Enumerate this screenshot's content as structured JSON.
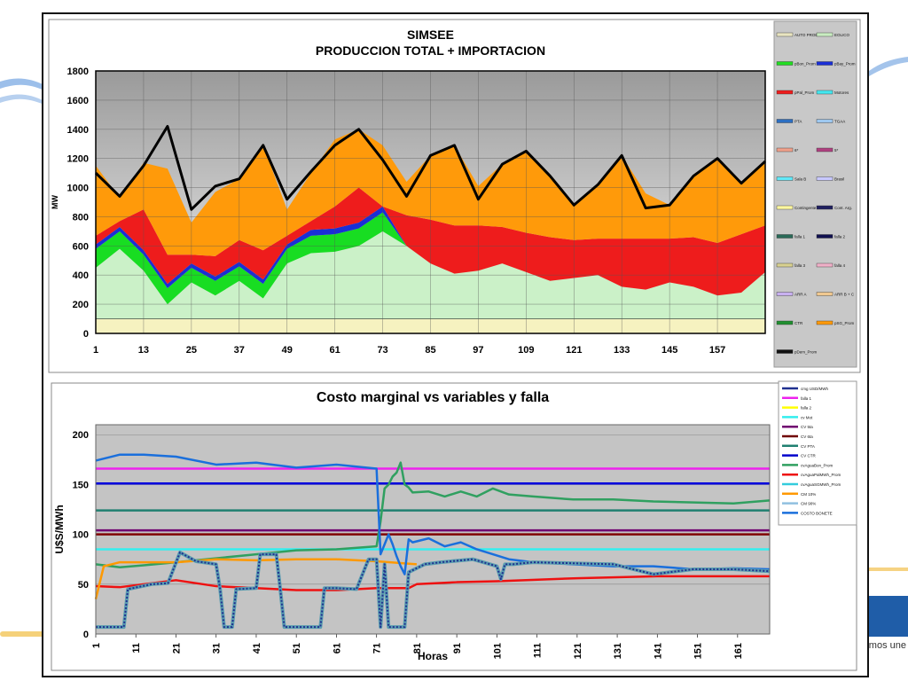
{
  "decor": {
    "brand_text": "mos une"
  },
  "chart_data": [
    {
      "type": "area",
      "title": "SIMSEE",
      "subtitle": "PRODUCCION TOTAL + IMPORTACION",
      "xlabel": "",
      "ylabel": "MW",
      "ylim": [
        0,
        1800
      ],
      "yticks": [
        0,
        200,
        400,
        600,
        800,
        1000,
        1200,
        1400,
        1600,
        1800
      ],
      "xticks": [
        "1",
        "13",
        "25",
        "37",
        "49",
        "61",
        "73",
        "85",
        "97",
        "109",
        "121",
        "133",
        "145",
        "157"
      ],
      "xrange": [
        1,
        169
      ],
      "grid": true,
      "legend": "right",
      "legend_entries": [
        "AUTO PROD",
        "EOLICO",
        "pBon_Prom",
        "pBay_Prom",
        "pPal_Prom",
        "Motores",
        "PTA",
        "TGAA",
        "6*",
        "5*",
        "Sala B",
        "Brasil",
        "Contingente",
        "Cont. Arg.",
        "falla 1",
        "falla 2",
        "falla 3",
        "falla 4",
        "ARR A",
        "ARR B + C",
        "CTR",
        "pSG_Prom",
        "pDem_Prom"
      ],
      "legend_colors": [
        "#e8e4c0",
        "#c8ecc0",
        "#22dd22",
        "#1a2fd6",
        "#ee1c1c",
        "#44e8f0",
        "#2c6fc2",
        "#9ec8f0",
        "#f0a08a",
        "#b04080",
        "#60e8f8",
        "#c8c8ff",
        "#fff8a0",
        "#202060",
        "#2a6a58",
        "#101050",
        "#d8d090",
        "#f0b0c8",
        "#c8b0f0",
        "#f0c890",
        "#209030",
        "#ff9a0a",
        "#111111"
      ],
      "x": [
        1,
        7,
        13,
        19,
        25,
        31,
        37,
        43,
        49,
        55,
        61,
        67,
        73,
        79,
        85,
        91,
        97,
        103,
        109,
        115,
        121,
        127,
        133,
        139,
        145,
        151,
        157,
        163,
        169
      ],
      "series": [
        {
          "name": "AUTO PROD",
          "color": "#f6f2c0",
          "values": [
            100,
            100,
            100,
            100,
            100,
            100,
            100,
            100,
            100,
            100,
            100,
            100,
            100,
            100,
            100,
            100,
            100,
            100,
            100,
            100,
            100,
            100,
            100,
            100,
            100,
            100,
            100,
            100,
            100
          ]
        },
        {
          "name": "EOLICO",
          "color": "#cbf1c8",
          "values": [
            350,
            480,
            330,
            100,
            250,
            160,
            260,
            140,
            380,
            450,
            460,
            500,
            600,
            500,
            380,
            310,
            330,
            380,
            320,
            260,
            280,
            300,
            220,
            200,
            250,
            220,
            160,
            180,
            320
          ]
        },
        {
          "name": "pBon_Prom",
          "color": "#18dd22",
          "values": [
            130,
            120,
            110,
            110,
            100,
            100,
            100,
            100,
            100,
            120,
            120,
            120,
            130,
            0,
            0,
            0,
            0,
            0,
            0,
            0,
            0,
            0,
            0,
            0,
            0,
            0,
            0,
            0,
            0
          ]
        },
        {
          "name": "pBay_Prom",
          "color": "#1a2fd6",
          "values": [
            30,
            30,
            30,
            30,
            30,
            30,
            30,
            30,
            30,
            40,
            40,
            40,
            40,
            0,
            0,
            0,
            0,
            0,
            0,
            0,
            0,
            0,
            0,
            0,
            0,
            0,
            0,
            0,
            0
          ]
        },
        {
          "name": "pPal_Prom",
          "color": "#ee1c1c",
          "values": [
            60,
            40,
            280,
            200,
            60,
            140,
            150,
            200,
            60,
            60,
            150,
            240,
            0,
            210,
            300,
            330,
            310,
            250,
            270,
            300,
            260,
            250,
            330,
            350,
            300,
            340,
            360,
            400,
            320
          ]
        },
        {
          "name": "pSG_Prom",
          "color": "#ff9a0a",
          "values": [
            480,
            160,
            320,
            590,
            220,
            440,
            420,
            720,
            180,
            330,
            460,
            400,
            420,
            230,
            440,
            550,
            270,
            430,
            560,
            420,
            240,
            370,
            570,
            310,
            230,
            420,
            580,
            350,
            440
          ]
        }
      ],
      "demand": {
        "name": "pDem_Prom",
        "color": "#000000",
        "values": [
          1100,
          940,
          1150,
          1420,
          850,
          1010,
          1060,
          1290,
          920,
          1110,
          1290,
          1400,
          1190,
          940,
          1220,
          1290,
          920,
          1160,
          1250,
          1080,
          880,
          1020,
          1220,
          860,
          880,
          1080,
          1200,
          1030,
          1180
        ]
      }
    },
    {
      "type": "line",
      "title": "Costo marginal vs variables y falla",
      "xlabel": "Horas",
      "ylabel": "U$S/MWh",
      "ylim": [
        0,
        210
      ],
      "yticks": [
        0,
        50,
        100,
        150,
        200
      ],
      "xticks": [
        "1",
        "11",
        "21",
        "31",
        "41",
        "51",
        "61",
        "71",
        "81",
        "91",
        "101",
        "111",
        "121",
        "131",
        "141",
        "151",
        "161"
      ],
      "xrange": [
        1,
        169
      ],
      "grid": true,
      "legend": "right",
      "legend_entries": [
        "cmg USD/MWh",
        "falla 1",
        "falla 2",
        "cv Mot",
        "CV 5ta",
        "CV 6ta",
        "CV PTA",
        "CV CTR",
        "cvAguaBon_Prom",
        "cvAguaPalMWh_Prom",
        "cvAguaSGMWh_Prom",
        "CM 10%",
        "CM 90%",
        "COSTO BONETE"
      ],
      "legend_colors": [
        "#203090",
        "#ee22ee",
        "#ffff00",
        "#33eeee",
        "#700070",
        "#700000",
        "#208070",
        "#0000cc",
        "#30a060",
        "#ee1111",
        "#33ccdd",
        "#ff9900",
        "#90c0e0",
        "#1a6fdc"
      ],
      "horizontal_lines": [
        {
          "name": "falla 1",
          "color": "#ee22ee",
          "value": 166
        },
        {
          "name": "CV CTR",
          "color": "#0000dd",
          "value": 151
        },
        {
          "name": "CV PTA",
          "color": "#208070",
          "value": 124
        },
        {
          "name": "CV 5ta",
          "color": "#700070",
          "value": 104
        },
        {
          "name": "CV 6ta",
          "color": "#800000",
          "value": 100
        },
        {
          "name": "cv Mot",
          "color": "#33eeee",
          "value": 85
        }
      ],
      "cmg": {
        "name": "cmg USD/MWh",
        "x": [
          1,
          8,
          9,
          15,
          19,
          22,
          26,
          31,
          32,
          33,
          34,
          35,
          36,
          41,
          42,
          46,
          47,
          48,
          51,
          56,
          57,
          58,
          61,
          66,
          69,
          71,
          72,
          73,
          74,
          75,
          76,
          77,
          78,
          79,
          80,
          83,
          87,
          95,
          101,
          102,
          103,
          105,
          110,
          120,
          130,
          140,
          150,
          160,
          169
        ],
        "y": [
          7,
          7,
          45,
          50,
          51,
          82,
          73,
          70,
          45,
          7,
          7,
          7,
          45,
          46,
          80,
          80,
          45,
          7,
          7,
          7,
          7,
          46,
          46,
          45,
          75,
          75,
          7,
          70,
          7,
          7,
          7,
          7,
          7,
          62,
          64,
          70,
          72,
          75,
          68,
          55,
          70,
          70,
          72,
          71,
          70,
          60,
          65,
          65,
          63
        ]
      },
      "lines": [
        {
          "name": "cvAguaBon_Prom",
          "color": "#30a060",
          "x": [
            1,
            7,
            13,
            21,
            31,
            41,
            51,
            61,
            71,
            72,
            73,
            74,
            75,
            76,
            77,
            78,
            79,
            80,
            84,
            88,
            92,
            96,
            100,
            104,
            110,
            120,
            130,
            140,
            150,
            160,
            169
          ],
          "y": [
            70,
            67,
            69,
            72,
            76,
            80,
            84,
            85,
            88,
            113,
            146,
            150,
            158,
            162,
            172,
            150,
            147,
            142,
            143,
            138,
            143,
            138,
            146,
            140,
            138,
            135,
            135,
            133,
            132,
            131,
            134
          ]
        },
        {
          "name": "cvAguaPalMWh_Prom",
          "color": "#ee1111",
          "x": [
            1,
            7,
            13,
            21,
            31,
            41,
            51,
            61,
            71,
            79,
            81,
            91,
            101,
            121,
            141,
            161,
            169
          ],
          "y": [
            48,
            47,
            50,
            54,
            48,
            46,
            44,
            44,
            46,
            46,
            50,
            52,
            53,
            56,
            58,
            58,
            58
          ]
        },
        {
          "name": "cvAguaSGMWh_Prom",
          "color": "#ff9900",
          "x": [
            1,
            3,
            7,
            13,
            21,
            31,
            41,
            51,
            61,
            71,
            81
          ],
          "y": [
            35,
            68,
            72,
            72,
            72,
            75,
            74,
            75,
            75,
            73,
            70
          ]
        },
        {
          "name": "COSTO BONETE",
          "color": "#1a6fdc",
          "x": [
            1,
            7,
            13,
            21,
            31,
            41,
            51,
            61,
            71,
            72,
            73,
            74,
            75,
            76,
            77,
            78,
            79,
            80,
            84,
            88,
            92,
            96,
            100,
            104,
            110,
            120,
            130,
            140,
            150,
            160,
            169
          ],
          "y": [
            174,
            180,
            180,
            178,
            170,
            172,
            167,
            170,
            166,
            80,
            90,
            100,
            90,
            78,
            68,
            60,
            95,
            92,
            96,
            88,
            92,
            85,
            80,
            75,
            72,
            70,
            68,
            68,
            65,
            66,
            65
          ]
        }
      ]
    }
  ]
}
